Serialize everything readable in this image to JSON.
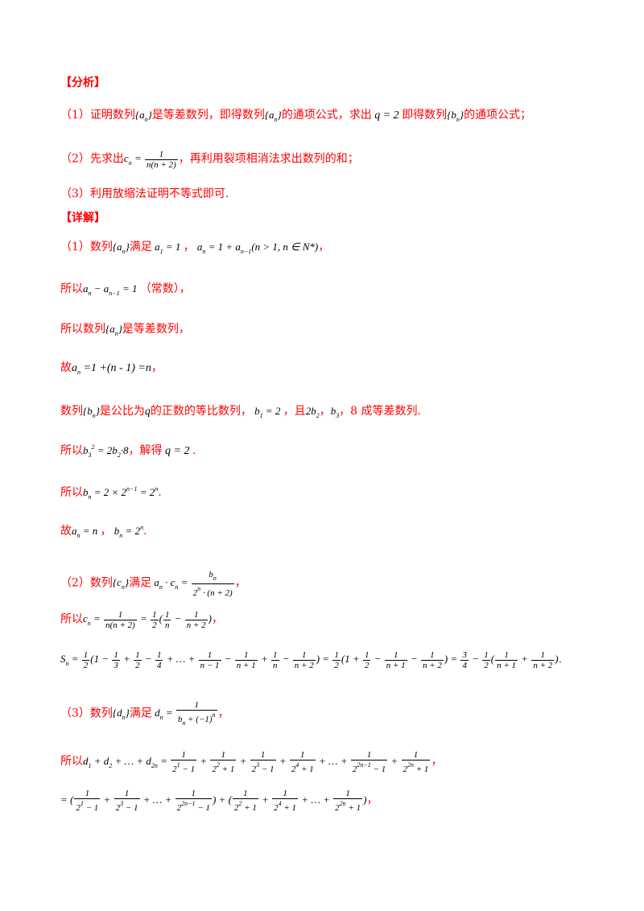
{
  "analysis": {
    "title": "【分析】",
    "p1": [
      "（1）证明数列",
      "是等差数列，即得数列",
      "的通项公式，求出",
      "即得数列",
      "的通项公式；"
    ],
    "p2": [
      "（2）先求出",
      "，再利用裂项相消法求出数列的和；"
    ],
    "p3": "（3）利用放缩法证明不等式即可."
  },
  "detail": {
    "title": "【详解】",
    "l1": [
      "（1）数列",
      "满足",
      "，",
      "，"
    ],
    "l2": [
      "所以",
      "（常数），"
    ],
    "l3": [
      "所以数列",
      "是等差数列，"
    ],
    "l4": [
      "故",
      "，"
    ],
    "l5": [
      "数列",
      "是公比为",
      "的正数的等比数列，",
      "，且",
      "，",
      "，8 成等差数列."
    ],
    "l6": [
      "所以",
      "，解得",
      "."
    ],
    "l7": [
      "所以",
      "."
    ],
    "l8": [
      "故",
      "，",
      "."
    ],
    "l9": [
      "（2）数列",
      "满足",
      "，"
    ],
    "l10": [
      "所以",
      "，"
    ],
    "l12": [
      "（3）数列",
      "满足",
      "，"
    ],
    "l13": [
      "所以",
      "，"
    ]
  }
}
